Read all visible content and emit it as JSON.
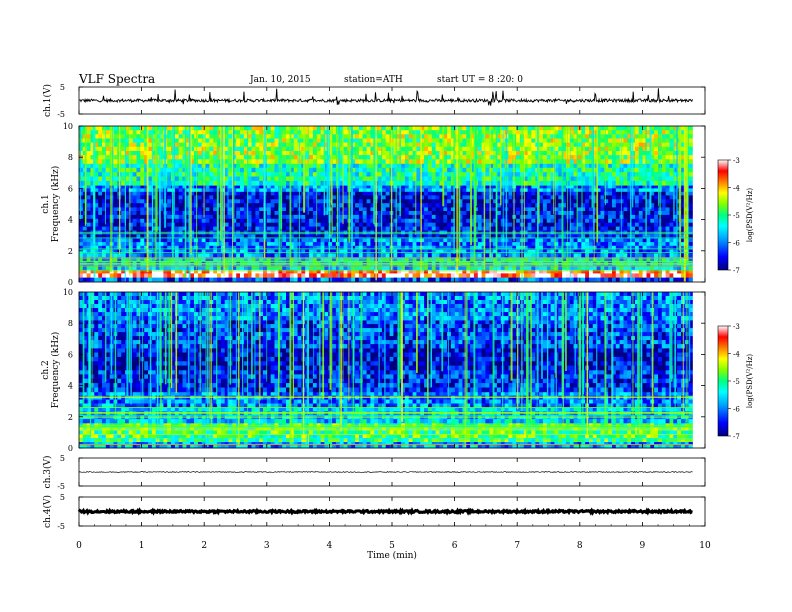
{
  "header": {
    "title": "VLF Spectra",
    "date": "Jan. 10, 2015",
    "station": "station=ATH",
    "start": "start UT = 8 :20: 0"
  },
  "colors": {
    "spectrogram_scale": [
      "#000080",
      "#0000ff",
      "#00a0ff",
      "#00ffff",
      "#00ff80",
      "#80ff00",
      "#ffff00",
      "#ff8000",
      "#ff0000",
      "#ffffff"
    ]
  },
  "chart_data": [
    {
      "type": "line",
      "name": "waveform-ch1",
      "ylabel": "ch.1(V)",
      "ylim": [
        -5,
        5
      ],
      "yticks": [
        "5",
        "-5"
      ],
      "x_range_min": [
        0,
        9.8
      ],
      "description_level": "noisy waveform around 0 V with frequent spikes",
      "level": 0,
      "amplitude": 0.55
    },
    {
      "type": "heatmap",
      "name": "spectrogram-ch1",
      "ylabel": "ch.1 Frequency (kHz)",
      "ylim": [
        0,
        10
      ],
      "yticks": [
        "0",
        "2",
        "4",
        "6",
        "8",
        "10"
      ],
      "x_range_min": [
        0,
        9.8
      ],
      "colorbar": {
        "label": "log(PSD(V²/Hz)",
        "range": [
          -7,
          -3
        ],
        "ticks": [
          "-3",
          "-4",
          "-5",
          "-6",
          "-7"
        ]
      },
      "bands": [
        {
          "from_khz": 0,
          "to_khz": 0.3,
          "log_psd": -6.2
        },
        {
          "from_khz": 0.3,
          "to_khz": 0.8,
          "log_psd": -3.3
        },
        {
          "from_khz": 0.8,
          "to_khz": 1.6,
          "log_psd": -5.5
        },
        {
          "from_khz": 1.6,
          "to_khz": 2.8,
          "log_psd": -6.0
        },
        {
          "from_khz": 2.8,
          "to_khz": 4.8,
          "log_psd": -6.5
        },
        {
          "from_khz": 4.8,
          "to_khz": 5.8,
          "log_psd": -6.6
        },
        {
          "from_khz": 5.8,
          "to_khz": 6.2,
          "log_psd": -6.0
        },
        {
          "from_khz": 6.2,
          "to_khz": 7.6,
          "log_psd": -5.2
        },
        {
          "from_khz": 7.6,
          "to_khz": 10,
          "log_psd": -4.6
        }
      ]
    },
    {
      "type": "heatmap",
      "name": "spectrogram-ch2",
      "ylabel": "ch.2 Frequency (kHz)",
      "ylim": [
        0,
        10
      ],
      "yticks": [
        "0",
        "2",
        "4",
        "6",
        "8",
        "10"
      ],
      "x_range_min": [
        0,
        9.8
      ],
      "colorbar": {
        "label": "log(PSD(V²/Hz)",
        "range": [
          -7,
          -3
        ],
        "ticks": [
          "-3",
          "-4",
          "-5",
          "-6",
          "-7"
        ]
      },
      "bands": [
        {
          "from_khz": 0,
          "to_khz": 0.4,
          "log_psd": -5.8
        },
        {
          "from_khz": 0.4,
          "to_khz": 1.6,
          "log_psd": -4.9
        },
        {
          "from_khz": 1.6,
          "to_khz": 2.6,
          "log_psd": -5.6
        },
        {
          "from_khz": 2.6,
          "to_khz": 3.6,
          "log_psd": -6.0
        },
        {
          "from_khz": 3.6,
          "to_khz": 5.0,
          "log_psd": -6.4
        },
        {
          "from_khz": 5.0,
          "to_khz": 6.4,
          "log_psd": -6.7
        },
        {
          "from_khz": 6.4,
          "to_khz": 8.2,
          "log_psd": -6.3
        },
        {
          "from_khz": 8.2,
          "to_khz": 10,
          "log_psd": -6.0
        }
      ]
    },
    {
      "type": "line",
      "name": "waveform-ch3",
      "ylabel": "ch.3(V)",
      "ylim": [
        -5,
        5
      ],
      "yticks": [
        "5",
        "-5"
      ],
      "x_range_min": [
        0,
        9.8
      ],
      "level": 0,
      "amplitude": 0.15
    },
    {
      "type": "line",
      "name": "waveform-ch4",
      "ylabel": "ch.4(V)",
      "ylim": [
        -5,
        5
      ],
      "yticks": [
        "5",
        "-5"
      ],
      "x_range_min": [
        0,
        9.8
      ],
      "level": 0,
      "amplitude": 0.35
    }
  ],
  "xaxis": {
    "label": "Time (min)",
    "ticks": [
      "0",
      "1",
      "2",
      "3",
      "4",
      "5",
      "6",
      "7",
      "8",
      "9",
      "10"
    ],
    "range": [
      0,
      10
    ]
  }
}
